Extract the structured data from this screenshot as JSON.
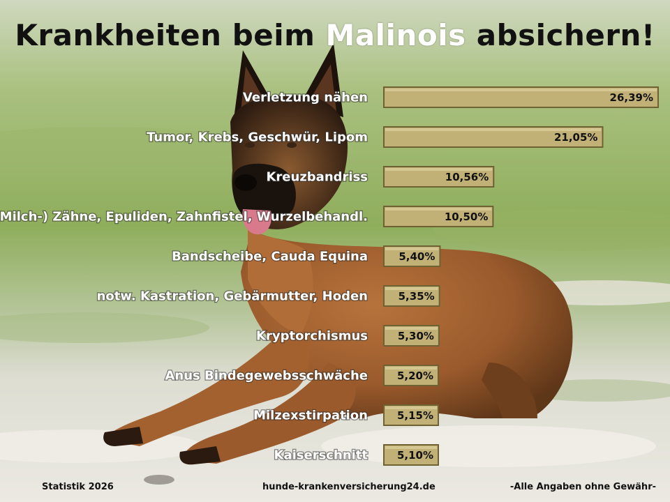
{
  "header": {
    "title_part1": "Krankheiten beim ",
    "title_highlight": "Malinois",
    "title_part2": " absichern!"
  },
  "chart_data": {
    "type": "bar",
    "orientation": "horizontal",
    "categories": [
      "Verletzung nähen",
      "Tumor, Krebs, Geschwür, Lipom",
      "Kreuzbandriss",
      "(Milch-) Zähne, Epuliden, Zahnfistel, Wurzelbehandl.",
      "Bandscheibe, Cauda Equina",
      "notw. Kastration, Gebärmutter, Hoden",
      "Kryptorchismus",
      "Anus Bindegewebsschwäche",
      "Milzexstirpation",
      "Kaiserschnitt"
    ],
    "values": [
      26.39,
      21.05,
      10.56,
      10.5,
      5.4,
      5.35,
      5.3,
      5.2,
      5.15,
      5.1
    ],
    "value_labels": [
      "26,39%",
      "21,05%",
      "10,56%",
      "10,50%",
      "5,40%",
      "5,35%",
      "5,30%",
      "5,20%",
      "5,15%",
      "5,10%"
    ],
    "xlim": [
      0,
      26.39
    ],
    "bar_color": "#c2b176",
    "bar_border_color": "#6e6232",
    "grid": false
  },
  "footer": {
    "left": "Statistik 2026",
    "center": "hunde-krankenversicherung24.de",
    "right": "-Alle Angaben ohne Gewähr-"
  }
}
